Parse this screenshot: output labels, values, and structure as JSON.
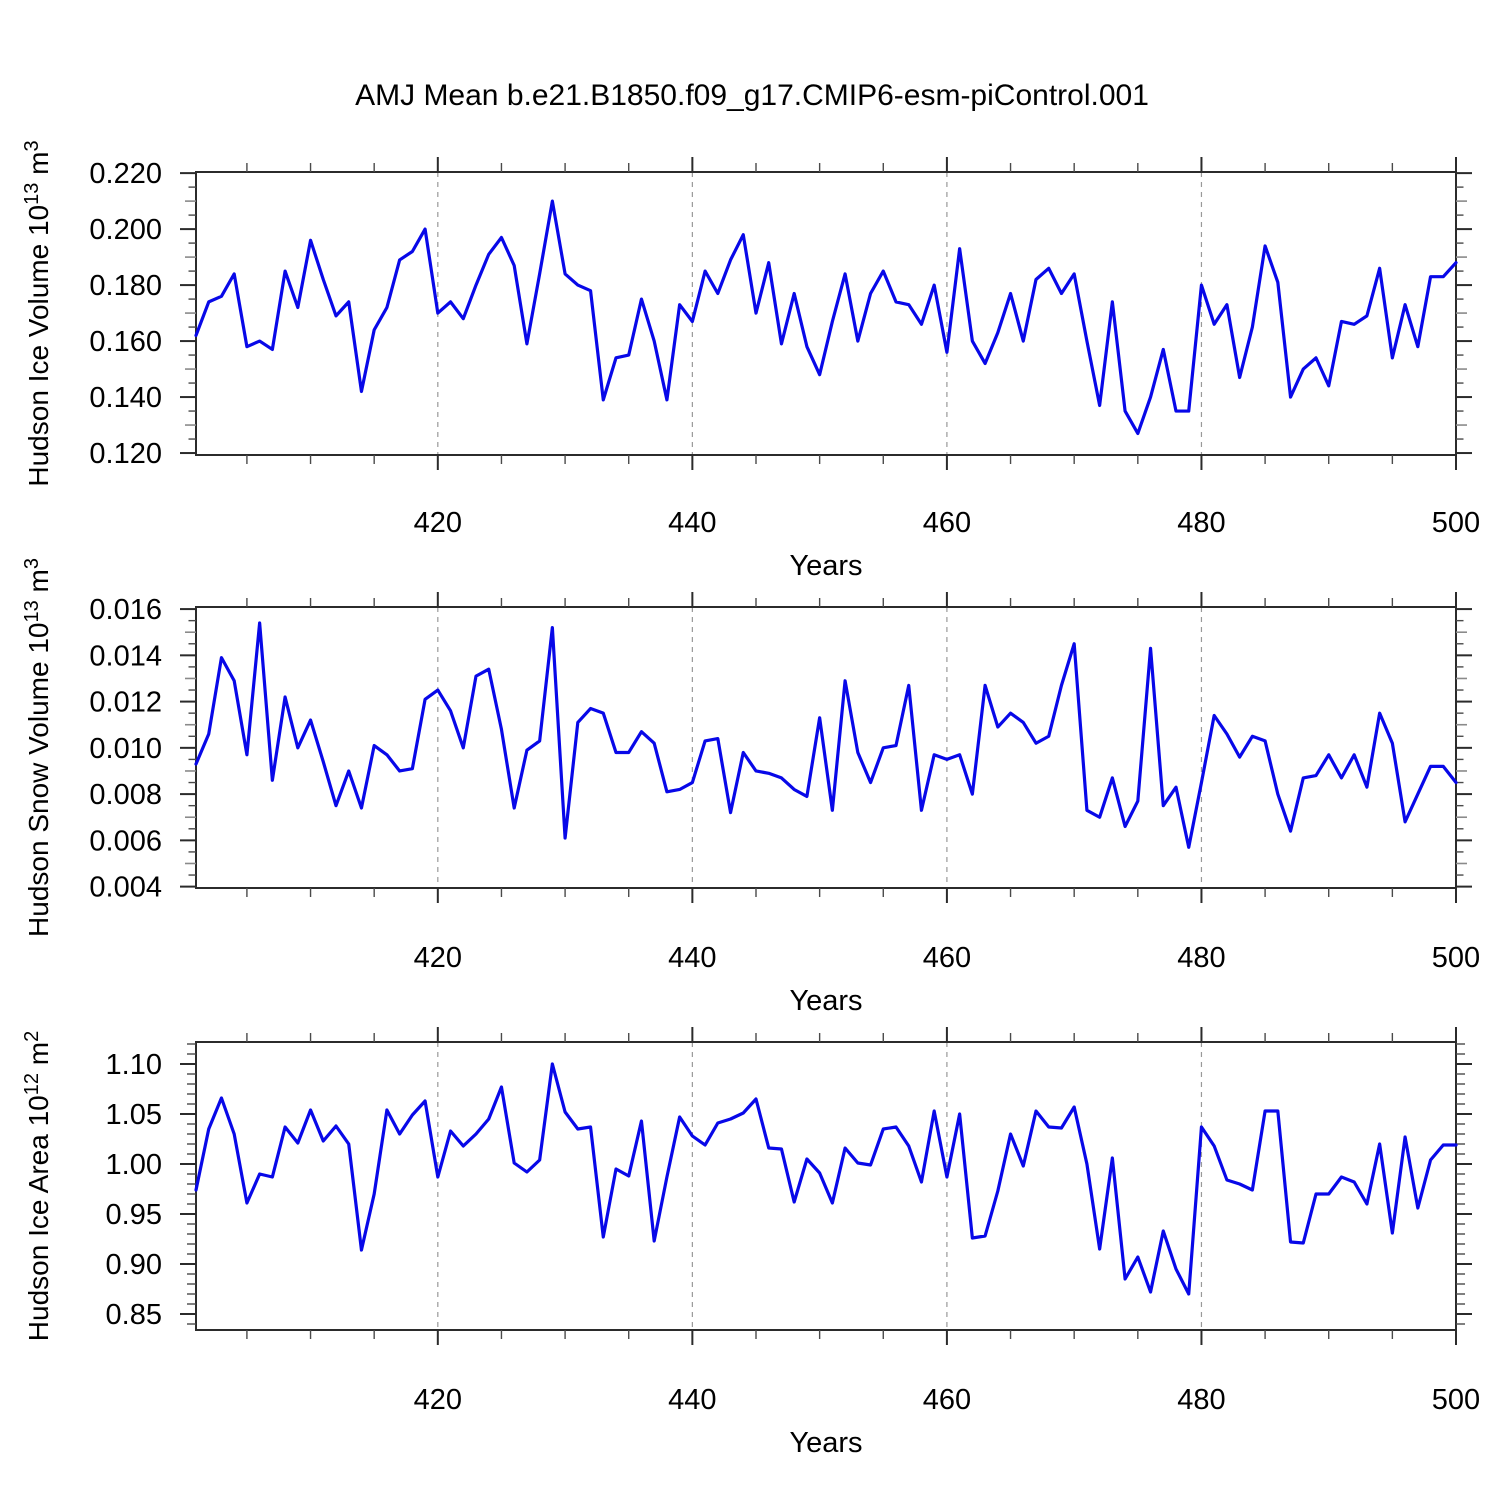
{
  "title": "AMJ Mean b.e21.B1850.f09_g17.CMIP6-esm-piControl.001",
  "xlabel": "Years",
  "colors": {
    "line": "#0808e8",
    "grid": "#999999",
    "axis": "#2b2b2b",
    "half_tick": "#8a8a8a",
    "quarter_tick": "#4a4a4a",
    "text": "#000000"
  },
  "chart_data": [
    {
      "type": "line",
      "name": "hudson-ice-volume",
      "ylabel_text": "Hudson Ice Volume 10^13 m^3",
      "ylabel_segments": [
        {
          "t": "Hudson Ice Volume 10"
        },
        {
          "t": "13",
          "sup": true
        },
        {
          "t": " m"
        },
        {
          "t": "3",
          "sup": true
        }
      ],
      "xlabel": "Years",
      "xlim": [
        401,
        500
      ],
      "ylim": [
        0.1193,
        0.2204
      ],
      "ytick_base": 0.12,
      "ytick_minor_step": 0.005,
      "ytick_pattern": 4,
      "yticks": [
        0.12,
        0.14,
        0.16,
        0.18,
        0.2,
        0.22
      ],
      "ytick_labels": [
        "0.120",
        "0.140",
        "0.160",
        "0.180",
        "0.200",
        "0.220"
      ],
      "xticks_major": [
        420,
        440,
        460,
        480,
        500
      ],
      "xtick_labels": [
        "420",
        "440",
        "460",
        "480",
        "500"
      ],
      "xtick_minor_step": 5,
      "grid_years": [
        420,
        440,
        460,
        480
      ],
      "x_years": {
        "start": 401,
        "end": 500
      },
      "values": [
        0.162,
        0.174,
        0.176,
        0.184,
        0.158,
        0.16,
        0.157,
        0.185,
        0.172,
        0.196,
        0.182,
        0.169,
        0.174,
        0.142,
        0.164,
        0.172,
        0.189,
        0.192,
        0.2,
        0.17,
        0.174,
        0.168,
        0.18,
        0.191,
        0.197,
        0.187,
        0.159,
        0.184,
        0.21,
        0.184,
        0.18,
        0.178,
        0.139,
        0.154,
        0.155,
        0.175,
        0.16,
        0.139,
        0.173,
        0.167,
        0.185,
        0.177,
        0.189,
        0.198,
        0.17,
        0.188,
        0.159,
        0.177,
        0.158,
        0.148,
        0.167,
        0.184,
        0.16,
        0.177,
        0.185,
        0.174,
        0.173,
        0.166,
        0.18,
        0.156,
        0.193,
        0.16,
        0.152,
        0.163,
        0.177,
        0.16,
        0.182,
        0.186,
        0.177,
        0.184,
        0.16,
        0.137,
        0.174,
        0.135,
        0.127,
        0.14,
        0.157,
        0.135,
        0.135,
        0.18,
        0.166,
        0.173,
        0.147,
        0.165,
        0.194,
        0.181,
        0.14,
        0.15,
        0.154,
        0.144,
        0.167,
        0.166,
        0.169,
        0.186,
        0.154,
        0.173,
        0.158,
        0.183,
        0.183,
        0.188
      ]
    },
    {
      "type": "line",
      "name": "hudson-snow-volume",
      "ylabel_text": "Hudson Snow Volume 10^13 m^3",
      "ylabel_segments": [
        {
          "t": "Hudson Snow Volume 10"
        },
        {
          "t": "13",
          "sup": true
        },
        {
          "t": " m"
        },
        {
          "t": "3",
          "sup": true
        }
      ],
      "xlabel": "Years",
      "xlim": [
        401,
        500
      ],
      "ylim": [
        0.00394,
        0.01609
      ],
      "ytick_base": 0.004,
      "ytick_minor_step": 0.0005,
      "ytick_pattern": 4,
      "yticks": [
        0.004,
        0.006,
        0.008,
        0.01,
        0.012,
        0.014,
        0.016
      ],
      "ytick_labels": [
        "0.004",
        "0.006",
        "0.008",
        "0.010",
        "0.012",
        "0.014",
        "0.016"
      ],
      "xticks_major": [
        420,
        440,
        460,
        480,
        500
      ],
      "xtick_labels": [
        "420",
        "440",
        "460",
        "480",
        "500"
      ],
      "xtick_minor_step": 5,
      "grid_years": [
        420,
        440,
        460,
        480
      ],
      "x_years": {
        "start": 401,
        "end": 500
      },
      "values": [
        0.0093,
        0.0106,
        0.0139,
        0.0129,
        0.0097,
        0.0154,
        0.0086,
        0.0122,
        0.01,
        0.0112,
        0.0094,
        0.0075,
        0.009,
        0.0074,
        0.0101,
        0.0097,
        0.009,
        0.0091,
        0.0121,
        0.0125,
        0.0116,
        0.01,
        0.0131,
        0.0134,
        0.0108,
        0.0074,
        0.0099,
        0.0103,
        0.0152,
        0.0061,
        0.0111,
        0.0117,
        0.0115,
        0.0098,
        0.0098,
        0.0107,
        0.0102,
        0.0081,
        0.0082,
        0.0085,
        0.0103,
        0.0104,
        0.0072,
        0.0098,
        0.009,
        0.0089,
        0.0087,
        0.0082,
        0.0079,
        0.0113,
        0.0073,
        0.0129,
        0.0098,
        0.0085,
        0.01,
        0.0101,
        0.0127,
        0.0073,
        0.0097,
        0.0095,
        0.0097,
        0.008,
        0.0127,
        0.0109,
        0.0115,
        0.0111,
        0.0102,
        0.0105,
        0.0127,
        0.0145,
        0.0073,
        0.007,
        0.0087,
        0.0066,
        0.0077,
        0.0143,
        0.0075,
        0.0083,
        0.0057,
        0.0085,
        0.0114,
        0.0106,
        0.0096,
        0.0105,
        0.0103,
        0.008,
        0.0064,
        0.0087,
        0.0088,
        0.0097,
        0.0087,
        0.0097,
        0.0083,
        0.0115,
        0.0102,
        0.0068,
        0.008,
        0.0092,
        0.0092,
        0.0085
      ]
    },
    {
      "type": "line",
      "name": "hudson-ice-area",
      "ylabel_text": "Hudson Ice Area 10^12 m^2",
      "ylabel_segments": [
        {
          "t": "Hudson Ice Area 10"
        },
        {
          "t": "12",
          "sup": true
        },
        {
          "t": " m"
        },
        {
          "t": "2",
          "sup": true
        }
      ],
      "xlabel": "Years",
      "xlim": [
        401,
        500
      ],
      "ylim": [
        0.834,
        1.122
      ],
      "ytick_base": 0.85,
      "ytick_minor_step": 0.01,
      "ytick_pattern": 5,
      "yticks": [
        0.85,
        0.9,
        0.95,
        1.0,
        1.05,
        1.1
      ],
      "ytick_labels": [
        "0.85",
        "0.90",
        "0.95",
        "1.00",
        "1.05",
        "1.10"
      ],
      "xticks_major": [
        420,
        440,
        460,
        480,
        500
      ],
      "xtick_labels": [
        "420",
        "440",
        "460",
        "480",
        "500"
      ],
      "xtick_minor_step": 5,
      "grid_years": [
        420,
        440,
        460,
        480
      ],
      "x_years": {
        "start": 401,
        "end": 500
      },
      "values": [
        0.974,
        1.035,
        1.066,
        1.03,
        0.961,
        0.99,
        0.987,
        1.037,
        1.021,
        1.054,
        1.023,
        1.038,
        1.02,
        0.914,
        0.97,
        1.054,
        1.03,
        1.049,
        1.063,
        0.987,
        1.033,
        1.018,
        1.03,
        1.045,
        1.077,
        1.001,
        0.992,
        1.004,
        1.1,
        1.052,
        1.035,
        1.037,
        0.927,
        0.995,
        0.988,
        1.043,
        0.923,
        0.987,
        1.047,
        1.028,
        1.019,
        1.041,
        1.045,
        1.051,
        1.065,
        1.016,
        1.015,
        0.962,
        1.005,
        0.991,
        0.961,
        1.016,
        1.001,
        0.999,
        1.035,
        1.037,
        1.018,
        0.982,
        1.053,
        0.987,
        1.05,
        0.926,
        0.928,
        0.973,
        1.03,
        0.998,
        1.053,
        1.037,
        1.036,
        1.057,
        1.0,
        0.915,
        1.006,
        0.885,
        0.907,
        0.872,
        0.933,
        0.895,
        0.87,
        1.037,
        1.018,
        0.984,
        0.98,
        0.974,
        1.053,
        1.053,
        0.922,
        0.921,
        0.97,
        0.97,
        0.987,
        0.982,
        0.96,
        1.02,
        0.931,
        1.027,
        0.956,
        1.004,
        1.019,
        1.019
      ]
    }
  ]
}
